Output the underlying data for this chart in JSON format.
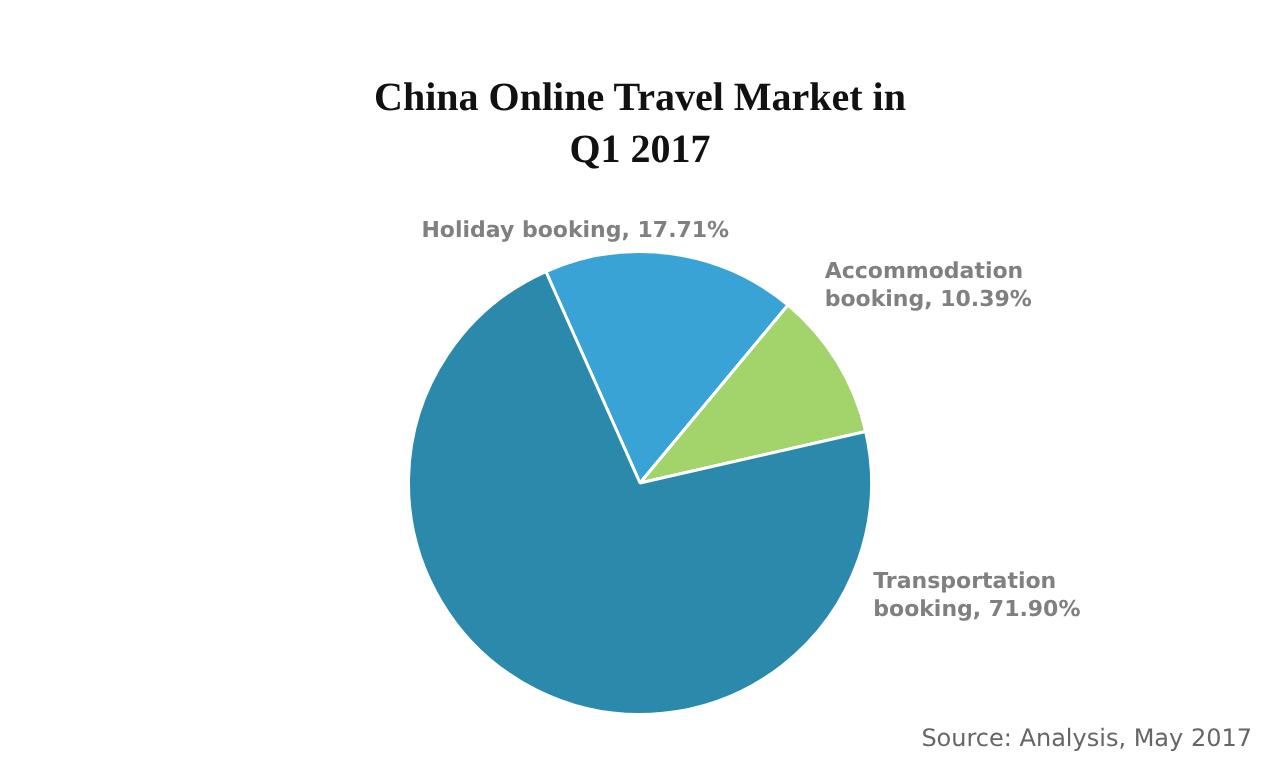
{
  "chart_data": {
    "type": "pie",
    "title": "China Online Travel Market in Q1 2017",
    "categories": [
      "Holiday booking",
      "Accommodation booking",
      "Transportation booking"
    ],
    "values": [
      17.71,
      10.39,
      71.9
    ],
    "value_labels": [
      "17.71%",
      "10.39%",
      "71.90%"
    ],
    "colors": [
      "#3aa3d5",
      "#a3d36b",
      "#2b8aab"
    ],
    "legend": false,
    "annotations": [
      "Source: Analysis, May 2017"
    ]
  }
}
